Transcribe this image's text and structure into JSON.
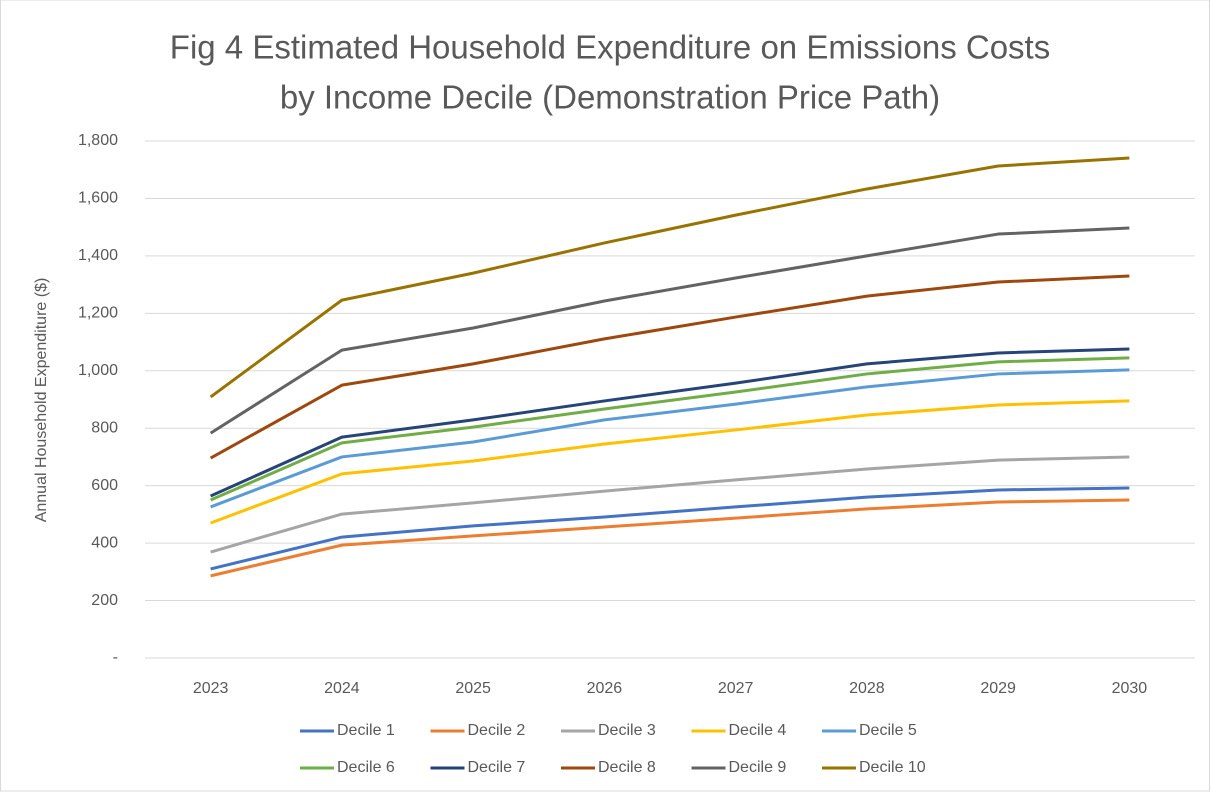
{
  "chart_data": {
    "type": "line",
    "title": "Fig 4 Estimated Household Expenditure on Emissions Costs",
    "subtitle": "by Income Decile (Demonstration Price Path)",
    "y_label": "Annual Household Expenditure ($)",
    "categories": [
      "2023",
      "2024",
      "2025",
      "2026",
      "2027",
      "2028",
      "2029",
      "2030"
    ],
    "ylim": [
      0,
      1800
    ],
    "yticks": [
      {
        "value": 0,
        "label": "-"
      },
      200,
      400,
      600,
      800,
      {
        "value": 1000,
        "label": "1,000"
      },
      {
        "value": 1200,
        "label": "1,200"
      },
      {
        "value": 1400,
        "label": "1,400"
      },
      {
        "value": 1600,
        "label": "1,600"
      },
      {
        "value": 1800,
        "label": "1,800"
      }
    ],
    "grid": true,
    "legend": "bottom",
    "series": [
      {
        "name": "Decile 1",
        "color": "#4472c4",
        "values": [
          310,
          421,
          460,
          491,
          526,
          560,
          585,
          592
        ]
      },
      {
        "name": "Decile 2",
        "color": "#ed7d31",
        "values": [
          286,
          393,
          425,
          456,
          487,
          519,
          543,
          550
        ]
      },
      {
        "name": "Decile 3",
        "color": "#a5a5a5",
        "values": [
          369,
          501,
          540,
          581,
          620,
          658,
          689,
          700
        ]
      },
      {
        "name": "Decile 4",
        "color": "#ffc000",
        "values": [
          470,
          641,
          686,
          745,
          794,
          846,
          881,
          895
        ]
      },
      {
        "name": "Decile 5",
        "color": "#5b9bd5",
        "values": [
          526,
          700,
          752,
          829,
          884,
          944,
          989,
          1003
        ]
      },
      {
        "name": "Decile 6",
        "color": "#70ad47",
        "values": [
          550,
          749,
          804,
          867,
          926,
          989,
          1031,
          1045
        ]
      },
      {
        "name": "Decile 7",
        "color": "#264478",
        "values": [
          564,
          769,
          829,
          895,
          957,
          1024,
          1062,
          1076
        ]
      },
      {
        "name": "Decile 8",
        "color": "#9e480e",
        "values": [
          696,
          950,
          1024,
          1111,
          1187,
          1260,
          1309,
          1330
        ]
      },
      {
        "name": "Decile 9",
        "color": "#636363",
        "values": [
          783,
          1072,
          1149,
          1243,
          1323,
          1400,
          1476,
          1497
        ]
      },
      {
        "name": "Decile 10",
        "color": "#997300",
        "values": [
          909,
          1246,
          1340,
          1445,
          1542,
          1633,
          1713,
          1741
        ]
      }
    ]
  }
}
